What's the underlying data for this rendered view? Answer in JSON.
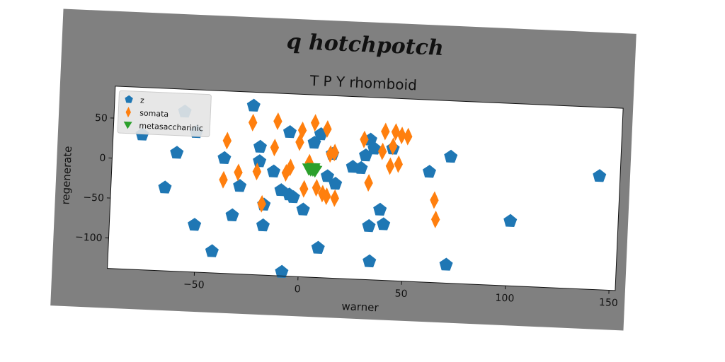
{
  "chart_data": {
    "type": "scatter",
    "suptitle": "q hotchpotch",
    "title": "T P Y rhomboid",
    "xlabel": "warner",
    "ylabel": "regenerate",
    "xlim": [
      -92,
      153
    ],
    "ylim": [
      -138,
      90
    ],
    "xticks": [
      -50,
      0,
      50,
      100,
      150
    ],
    "yticks": [
      -100,
      -50,
      0,
      50
    ],
    "legend_position": "upper left",
    "grid": false,
    "background": "#808080",
    "series": [
      {
        "name": "z",
        "marker": "pentagon",
        "color": "#1f77b4",
        "points": [
          [
            -78,
            31
          ],
          [
            -58,
            62
          ],
          [
            -52,
            37
          ],
          [
            -61,
            10
          ],
          [
            -66,
            -34
          ],
          [
            -51,
            -79
          ],
          [
            -42,
            -111
          ],
          [
            -38,
            6
          ],
          [
            -33,
            -65
          ],
          [
            -30,
            -28
          ],
          [
            -25,
            73
          ],
          [
            -21,
            22
          ],
          [
            -21,
            4
          ],
          [
            -18,
            -50
          ],
          [
            -18,
            -76
          ],
          [
            -14,
            -8
          ],
          [
            -10,
            -31
          ],
          [
            -8,
            -133
          ],
          [
            -7,
            42
          ],
          [
            -6,
            -36
          ],
          [
            -4,
            -39
          ],
          [
            1,
            -54
          ],
          [
            5,
            30
          ],
          [
            8,
            41
          ],
          [
            9,
            -101
          ],
          [
            12,
            -11
          ],
          [
            14,
            17
          ],
          [
            16,
            -20
          ],
          [
            24,
            2
          ],
          [
            28,
            1
          ],
          [
            30,
            17
          ],
          [
            32,
            37
          ],
          [
            34,
            26
          ],
          [
            33,
            -71
          ],
          [
            34,
            -115
          ],
          [
            38,
            -50
          ],
          [
            40,
            -68
          ],
          [
            43,
            27
          ],
          [
            61,
            0
          ],
          [
            71,
            20
          ],
          [
            71,
            -115
          ],
          [
            101,
            -57
          ],
          [
            143,
            4
          ]
        ]
      },
      {
        "name": "somata",
        "marker": "thin_diamond",
        "color": "#ff7f0e",
        "points": [
          [
            -37,
            28
          ],
          [
            -38,
            -21
          ],
          [
            -31,
            -11
          ],
          [
            -25,
            52
          ],
          [
            -22,
            -9
          ],
          [
            -19,
            -49
          ],
          [
            -14,
            22
          ],
          [
            -13,
            55
          ],
          [
            -8,
            -9
          ],
          [
            -6,
            -2
          ],
          [
            -2,
            30
          ],
          [
            -1,
            45
          ],
          [
            1,
            -28
          ],
          [
            3,
            5
          ],
          [
            5,
            55
          ],
          [
            7,
            -26
          ],
          [
            10,
            -33
          ],
          [
            11,
            48
          ],
          [
            12,
            -36
          ],
          [
            13,
            17
          ],
          [
            15,
            19
          ],
          [
            16,
            -38
          ],
          [
            29,
            37
          ],
          [
            32,
            -17
          ],
          [
            38,
            23
          ],
          [
            39,
            48
          ],
          [
            42,
            5
          ],
          [
            43,
            30
          ],
          [
            44,
            48
          ],
          [
            46,
            8
          ],
          [
            47,
            44
          ],
          [
            50,
            43
          ],
          [
            64,
            -35
          ],
          [
            65,
            -59
          ]
        ]
      },
      {
        "name": "metasaccharinic",
        "marker": "triangle_down",
        "color": "#2ca02c",
        "points": [
          [
            3,
            -3
          ],
          [
            4,
            -4
          ],
          [
            5,
            -4
          ],
          [
            6,
            -5
          ],
          [
            4,
            -3
          ],
          [
            5,
            -2
          ]
        ]
      }
    ]
  }
}
